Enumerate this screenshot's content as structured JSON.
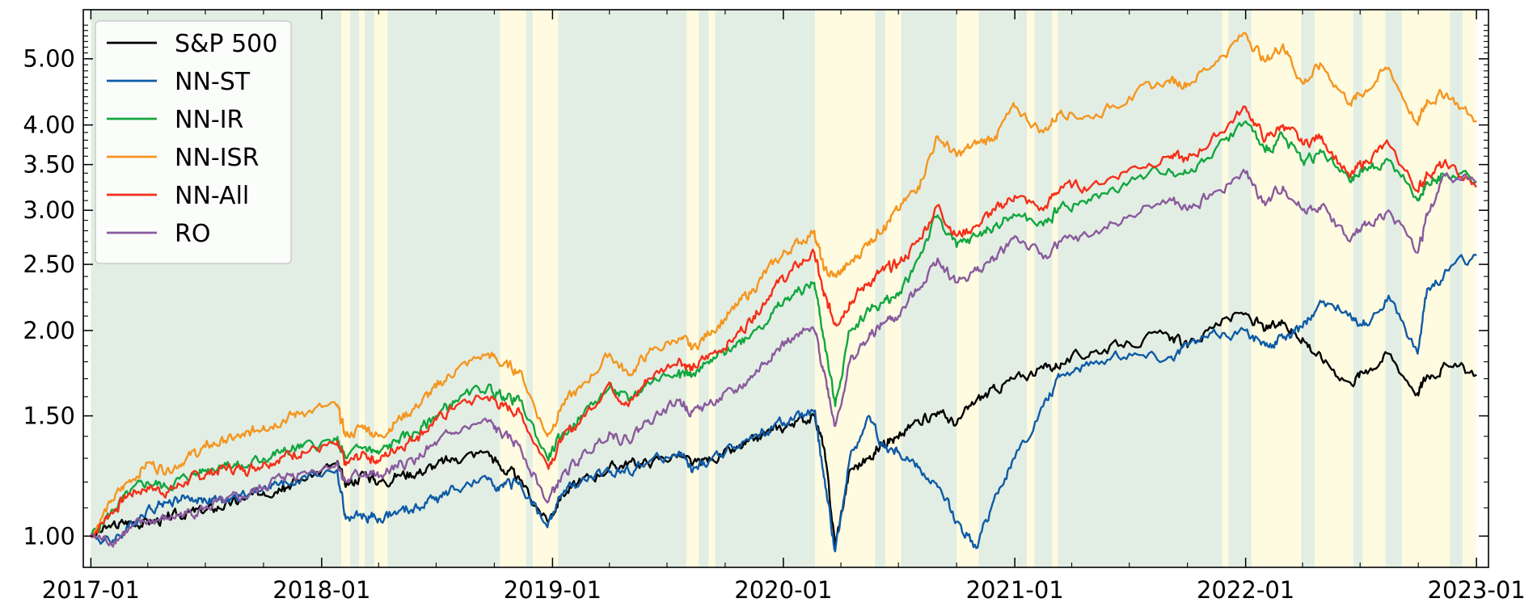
{
  "chart_data": {
    "type": "line",
    "y_scale": "log",
    "ylim": [
      0.9,
      5.9
    ],
    "xlim": [
      "2016-12-20",
      "2023-01-20"
    ],
    "x_ticks": [
      "2017-01",
      "2018-01",
      "2019-01",
      "2020-01",
      "2021-01",
      "2022-01",
      "2023-01"
    ],
    "y_ticks": [
      1.0,
      1.5,
      2.0,
      2.5,
      3.0,
      3.5,
      4.0,
      5.0
    ],
    "y_tick_labels": [
      "1.00",
      "1.50",
      "2.00",
      "2.50",
      "3.00",
      "3.50",
      "4.00",
      "5.00"
    ],
    "grid": false,
    "legend": "top-left",
    "regime_colors": {
      "green": "#e2eee3",
      "yellow": "#fffbe1"
    },
    "regime_yellow_periods": [
      [
        "2018-02-01",
        "2018-02-15"
      ],
      [
        "2018-03-01",
        "2018-03-10"
      ],
      [
        "2018-03-25",
        "2018-04-15"
      ],
      [
        "2018-10-10",
        "2018-11-20"
      ],
      [
        "2018-12-01",
        "2019-01-10"
      ],
      [
        "2019-08-01",
        "2019-08-20"
      ],
      [
        "2019-09-05",
        "2019-09-15"
      ],
      [
        "2020-02-20",
        "2020-05-25"
      ],
      [
        "2020-06-10",
        "2020-07-05"
      ],
      [
        "2020-10-01",
        "2020-11-05"
      ],
      [
        "2021-01-20",
        "2021-02-01"
      ],
      [
        "2021-03-01",
        "2021-03-10"
      ],
      [
        "2021-11-25",
        "2021-12-05"
      ],
      [
        "2022-01-10",
        "2022-03-30"
      ],
      [
        "2022-04-20",
        "2022-06-20"
      ],
      [
        "2022-07-05",
        "2022-08-10"
      ],
      [
        "2022-09-05",
        "2022-11-20"
      ],
      [
        "2022-12-10",
        "2022-12-31"
      ]
    ],
    "series": [
      {
        "name": "S&P 500",
        "color": "#000000",
        "x": [
          "2017-01-01",
          "2017-02-01",
          "2017-03-01",
          "2017-04-01",
          "2017-05-01",
          "2017-06-01",
          "2017-07-01",
          "2017-08-01",
          "2017-09-01",
          "2017-10-01",
          "2017-11-01",
          "2017-12-01",
          "2018-01-25",
          "2018-02-08",
          "2018-03-10",
          "2018-04-01",
          "2018-05-01",
          "2018-06-01",
          "2018-07-01",
          "2018-08-01",
          "2018-09-20",
          "2018-10-15",
          "2018-11-10",
          "2018-12-24",
          "2019-01-15",
          "2019-02-15",
          "2019-04-01",
          "2019-05-01",
          "2019-06-01",
          "2019-07-20",
          "2019-08-10",
          "2019-09-10",
          "2019-10-15",
          "2019-11-15",
          "2019-12-15",
          "2020-01-15",
          "2020-02-19",
          "2020-03-05",
          "2020-03-23",
          "2020-04-15",
          "2020-05-15",
          "2020-06-08",
          "2020-07-01",
          "2020-08-01",
          "2020-09-01",
          "2020-10-01",
          "2020-11-01",
          "2020-12-01",
          "2021-01-01",
          "2021-02-15",
          "2021-03-15",
          "2021-05-01",
          "2021-07-01",
          "2021-09-01",
          "2021-10-01",
          "2021-11-15",
          "2022-01-01",
          "2022-02-01",
          "2022-03-01",
          "2022-04-01",
          "2022-05-01",
          "2022-06-15",
          "2022-07-10",
          "2022-08-15",
          "2022-09-30",
          "2022-10-15",
          "2022-11-15",
          "2022-12-31"
        ],
        "y": [
          1.0,
          1.03,
          1.05,
          1.05,
          1.06,
          1.08,
          1.09,
          1.11,
          1.13,
          1.16,
          1.19,
          1.21,
          1.28,
          1.18,
          1.24,
          1.2,
          1.23,
          1.24,
          1.27,
          1.3,
          1.33,
          1.25,
          1.21,
          1.05,
          1.15,
          1.2,
          1.26,
          1.28,
          1.28,
          1.32,
          1.27,
          1.3,
          1.33,
          1.38,
          1.43,
          1.46,
          1.5,
          1.35,
          0.97,
          1.25,
          1.3,
          1.38,
          1.39,
          1.48,
          1.52,
          1.46,
          1.58,
          1.64,
          1.7,
          1.76,
          1.79,
          1.86,
          1.92,
          1.97,
          1.89,
          2.05,
          2.12,
          2.0,
          2.05,
          1.95,
          1.82,
          1.68,
          1.75,
          1.85,
          1.62,
          1.72,
          1.78,
          1.72
        ]
      },
      {
        "name": "NN-ST",
        "color": "#0f5ba6",
        "x": [
          "2017-01-01",
          "2017-02-01",
          "2017-03-01",
          "2017-04-01",
          "2017-05-01",
          "2017-06-01",
          "2017-07-01",
          "2017-08-01",
          "2017-09-01",
          "2017-10-01",
          "2017-11-01",
          "2017-12-01",
          "2018-01-25",
          "2018-02-08",
          "2018-03-10",
          "2018-04-01",
          "2018-05-01",
          "2018-06-01",
          "2018-07-01",
          "2018-08-01",
          "2018-09-20",
          "2018-10-15",
          "2018-11-10",
          "2018-12-24",
          "2019-01-15",
          "2019-02-15",
          "2019-04-01",
          "2019-05-01",
          "2019-06-01",
          "2019-07-20",
          "2019-08-10",
          "2019-09-10",
          "2019-10-15",
          "2019-11-15",
          "2019-12-15",
          "2020-01-15",
          "2020-02-19",
          "2020-03-05",
          "2020-03-23",
          "2020-04-15",
          "2020-05-15",
          "2020-06-08",
          "2020-07-01",
          "2020-08-01",
          "2020-09-01",
          "2020-10-01",
          "2020-11-01",
          "2020-12-01",
          "2021-01-01",
          "2021-02-15",
          "2021-03-15",
          "2021-05-01",
          "2021-07-01",
          "2021-09-01",
          "2021-10-01",
          "2021-11-15",
          "2022-01-01",
          "2022-02-01",
          "2022-03-01",
          "2022-04-01",
          "2022-05-01",
          "2022-06-15",
          "2022-07-10",
          "2022-08-15",
          "2022-09-30",
          "2022-10-15",
          "2022-11-15",
          "2022-12-31"
        ],
        "y": [
          1.0,
          0.98,
          1.03,
          1.1,
          1.12,
          1.14,
          1.13,
          1.12,
          1.15,
          1.18,
          1.19,
          1.22,
          1.25,
          1.06,
          1.07,
          1.06,
          1.08,
          1.1,
          1.14,
          1.17,
          1.21,
          1.18,
          1.2,
          1.03,
          1.15,
          1.2,
          1.24,
          1.25,
          1.28,
          1.33,
          1.24,
          1.3,
          1.35,
          1.4,
          1.44,
          1.48,
          1.52,
          1.22,
          0.95,
          1.3,
          1.5,
          1.35,
          1.33,
          1.26,
          1.18,
          1.05,
          0.96,
          1.15,
          1.3,
          1.55,
          1.72,
          1.8,
          1.85,
          1.83,
          1.9,
          1.98,
          2.0,
          1.9,
          1.95,
          2.02,
          2.2,
          2.12,
          2.05,
          2.25,
          1.85,
          2.3,
          2.45,
          2.58
        ]
      },
      {
        "name": "NN-IR",
        "color": "#12a640",
        "x": [
          "2017-01-01",
          "2017-02-01",
          "2017-03-01",
          "2017-04-01",
          "2017-05-01",
          "2017-06-01",
          "2017-07-01",
          "2017-08-01",
          "2017-09-01",
          "2017-10-01",
          "2017-11-01",
          "2017-12-01",
          "2018-01-25",
          "2018-02-08",
          "2018-03-10",
          "2018-04-01",
          "2018-05-01",
          "2018-06-01",
          "2018-07-01",
          "2018-08-01",
          "2018-09-20",
          "2018-10-15",
          "2018-11-10",
          "2018-12-24",
          "2019-01-15",
          "2019-02-15",
          "2019-04-01",
          "2019-05-01",
          "2019-06-01",
          "2019-07-20",
          "2019-08-10",
          "2019-09-10",
          "2019-10-15",
          "2019-11-15",
          "2019-12-15",
          "2020-01-15",
          "2020-02-19",
          "2020-03-05",
          "2020-03-23",
          "2020-04-15",
          "2020-05-15",
          "2020-06-08",
          "2020-07-01",
          "2020-08-01",
          "2020-09-01",
          "2020-10-01",
          "2020-11-01",
          "2020-12-01",
          "2021-01-01",
          "2021-02-15",
          "2021-03-15",
          "2021-05-01",
          "2021-07-01",
          "2021-09-01",
          "2021-10-01",
          "2021-11-15",
          "2022-01-01",
          "2022-02-01",
          "2022-03-01",
          "2022-04-01",
          "2022-05-01",
          "2022-06-15",
          "2022-07-10",
          "2022-08-15",
          "2022-09-30",
          "2022-10-15",
          "2022-11-15",
          "2022-12-31"
        ],
        "y": [
          1.0,
          1.08,
          1.15,
          1.2,
          1.18,
          1.22,
          1.25,
          1.28,
          1.26,
          1.3,
          1.33,
          1.35,
          1.38,
          1.3,
          1.35,
          1.32,
          1.38,
          1.42,
          1.5,
          1.58,
          1.65,
          1.6,
          1.58,
          1.3,
          1.4,
          1.5,
          1.65,
          1.58,
          1.68,
          1.75,
          1.72,
          1.8,
          1.9,
          2.0,
          2.12,
          2.25,
          2.35,
          1.95,
          1.55,
          2.0,
          2.15,
          2.2,
          2.25,
          2.55,
          2.95,
          2.65,
          2.75,
          2.85,
          2.95,
          2.85,
          3.05,
          3.1,
          3.3,
          3.45,
          3.4,
          3.7,
          4.05,
          3.65,
          3.85,
          3.55,
          3.65,
          3.3,
          3.45,
          3.55,
          3.1,
          3.3,
          3.4,
          3.3
        ]
      },
      {
        "name": "NN-ISR",
        "color": "#f5951f",
        "x": [
          "2017-01-01",
          "2017-02-01",
          "2017-03-01",
          "2017-04-01",
          "2017-05-01",
          "2017-06-01",
          "2017-07-01",
          "2017-08-01",
          "2017-09-01",
          "2017-10-01",
          "2017-11-01",
          "2017-12-01",
          "2018-01-25",
          "2018-02-08",
          "2018-03-10",
          "2018-04-01",
          "2018-05-01",
          "2018-06-01",
          "2018-07-01",
          "2018-08-01",
          "2018-09-20",
          "2018-10-15",
          "2018-11-10",
          "2018-12-24",
          "2019-01-15",
          "2019-02-15",
          "2019-04-01",
          "2019-05-01",
          "2019-06-01",
          "2019-07-20",
          "2019-08-10",
          "2019-09-10",
          "2019-10-15",
          "2019-11-15",
          "2019-12-15",
          "2020-01-15",
          "2020-02-19",
          "2020-03-05",
          "2020-03-23",
          "2020-04-15",
          "2020-05-15",
          "2020-06-08",
          "2020-07-01",
          "2020-08-01",
          "2020-09-01",
          "2020-10-01",
          "2020-11-01",
          "2020-12-01",
          "2021-01-01",
          "2021-02-15",
          "2021-03-15",
          "2021-05-01",
          "2021-07-01",
          "2021-09-01",
          "2021-10-01",
          "2021-11-15",
          "2022-01-01",
          "2022-02-01",
          "2022-03-01",
          "2022-04-01",
          "2022-05-01",
          "2022-06-15",
          "2022-07-10",
          "2022-08-15",
          "2022-09-30",
          "2022-10-15",
          "2022-11-15",
          "2022-12-31"
        ],
        "y": [
          1.0,
          1.12,
          1.2,
          1.28,
          1.25,
          1.3,
          1.35,
          1.38,
          1.4,
          1.45,
          1.48,
          1.52,
          1.55,
          1.4,
          1.45,
          1.4,
          1.48,
          1.55,
          1.65,
          1.75,
          1.85,
          1.78,
          1.75,
          1.4,
          1.55,
          1.65,
          1.85,
          1.72,
          1.85,
          1.95,
          1.88,
          2.0,
          2.15,
          2.3,
          2.5,
          2.65,
          2.8,
          2.45,
          2.4,
          2.5,
          2.7,
          2.85,
          3.0,
          3.25,
          3.85,
          3.6,
          3.75,
          3.85,
          4.25,
          3.9,
          4.2,
          4.1,
          4.4,
          4.65,
          4.6,
          4.95,
          5.45,
          4.95,
          5.25,
          4.6,
          4.9,
          4.3,
          4.5,
          4.85,
          4.0,
          4.35,
          4.45,
          4.05
        ]
      },
      {
        "name": "NN-All",
        "color": "#f52f19",
        "x": [
          "2017-01-01",
          "2017-02-01",
          "2017-03-01",
          "2017-04-01",
          "2017-05-01",
          "2017-06-01",
          "2017-07-01",
          "2017-08-01",
          "2017-09-01",
          "2017-10-01",
          "2017-11-01",
          "2017-12-01",
          "2018-01-25",
          "2018-02-08",
          "2018-03-10",
          "2018-04-01",
          "2018-05-01",
          "2018-06-01",
          "2018-07-01",
          "2018-08-01",
          "2018-09-20",
          "2018-10-15",
          "2018-11-10",
          "2018-12-24",
          "2019-01-15",
          "2019-02-15",
          "2019-04-01",
          "2019-05-01",
          "2019-06-01",
          "2019-07-20",
          "2019-08-10",
          "2019-09-10",
          "2019-10-15",
          "2019-11-15",
          "2019-12-15",
          "2020-01-15",
          "2020-02-19",
          "2020-03-05",
          "2020-03-23",
          "2020-04-15",
          "2020-05-15",
          "2020-06-08",
          "2020-07-01",
          "2020-08-01",
          "2020-09-01",
          "2020-10-01",
          "2020-11-01",
          "2020-12-01",
          "2021-01-01",
          "2021-02-15",
          "2021-03-15",
          "2021-05-01",
          "2021-07-01",
          "2021-09-01",
          "2021-10-01",
          "2021-11-15",
          "2022-01-01",
          "2022-02-01",
          "2022-03-01",
          "2022-04-01",
          "2022-05-01",
          "2022-06-15",
          "2022-07-10",
          "2022-08-15",
          "2022-09-30",
          "2022-10-15",
          "2022-11-15",
          "2022-12-31"
        ],
        "y": [
          1.0,
          1.08,
          1.15,
          1.18,
          1.16,
          1.2,
          1.23,
          1.26,
          1.25,
          1.28,
          1.31,
          1.33,
          1.36,
          1.27,
          1.32,
          1.29,
          1.35,
          1.4,
          1.48,
          1.55,
          1.6,
          1.55,
          1.52,
          1.27,
          1.38,
          1.48,
          1.68,
          1.55,
          1.7,
          1.82,
          1.75,
          1.85,
          1.95,
          2.1,
          2.3,
          2.45,
          2.6,
          2.25,
          2.05,
          2.2,
          2.35,
          2.45,
          2.5,
          2.7,
          3.05,
          2.75,
          2.85,
          3.0,
          3.15,
          3.0,
          3.25,
          3.25,
          3.45,
          3.6,
          3.55,
          3.85,
          4.25,
          3.8,
          4.0,
          3.75,
          3.85,
          3.35,
          3.55,
          3.75,
          3.2,
          3.4,
          3.5,
          3.25
        ]
      },
      {
        "name": "RO",
        "color": "#8a5a9e",
        "x": [
          "2017-01-01",
          "2017-02-01",
          "2017-03-01",
          "2017-04-01",
          "2017-05-01",
          "2017-06-01",
          "2017-07-01",
          "2017-08-01",
          "2017-09-01",
          "2017-10-01",
          "2017-11-01",
          "2017-12-01",
          "2018-01-25",
          "2018-02-08",
          "2018-03-10",
          "2018-04-01",
          "2018-05-01",
          "2018-06-01",
          "2018-07-01",
          "2018-08-01",
          "2018-09-20",
          "2018-10-15",
          "2018-11-10",
          "2018-12-24",
          "2019-01-15",
          "2019-02-15",
          "2019-04-01",
          "2019-05-01",
          "2019-06-01",
          "2019-07-20",
          "2019-08-10",
          "2019-09-10",
          "2019-10-15",
          "2019-11-15",
          "2019-12-15",
          "2020-01-15",
          "2020-02-19",
          "2020-03-05",
          "2020-03-23",
          "2020-04-15",
          "2020-05-15",
          "2020-06-08",
          "2020-07-01",
          "2020-08-01",
          "2020-09-01",
          "2020-10-01",
          "2020-11-01",
          "2020-12-01",
          "2021-01-01",
          "2021-02-15",
          "2021-03-15",
          "2021-05-01",
          "2021-07-01",
          "2021-09-01",
          "2021-10-01",
          "2021-11-15",
          "2022-01-01",
          "2022-02-01",
          "2022-03-01",
          "2022-04-01",
          "2022-05-01",
          "2022-06-15",
          "2022-07-10",
          "2022-08-15",
          "2022-09-30",
          "2022-10-15",
          "2022-11-15",
          "2022-12-31"
        ],
        "y": [
          1.0,
          0.98,
          1.02,
          1.05,
          1.06,
          1.08,
          1.1,
          1.12,
          1.14,
          1.18,
          1.22,
          1.24,
          1.28,
          1.2,
          1.24,
          1.22,
          1.26,
          1.3,
          1.36,
          1.42,
          1.47,
          1.4,
          1.36,
          1.12,
          1.22,
          1.3,
          1.42,
          1.38,
          1.48,
          1.58,
          1.52,
          1.57,
          1.62,
          1.72,
          1.85,
          1.95,
          2.0,
          1.75,
          1.45,
          1.8,
          1.95,
          2.05,
          2.1,
          2.3,
          2.55,
          2.35,
          2.45,
          2.55,
          2.75,
          2.55,
          2.7,
          2.75,
          2.95,
          3.1,
          3.0,
          3.2,
          3.4,
          3.05,
          3.25,
          3.0,
          3.05,
          2.7,
          2.85,
          3.0,
          2.6,
          2.95,
          3.4,
          3.3
        ]
      }
    ]
  }
}
